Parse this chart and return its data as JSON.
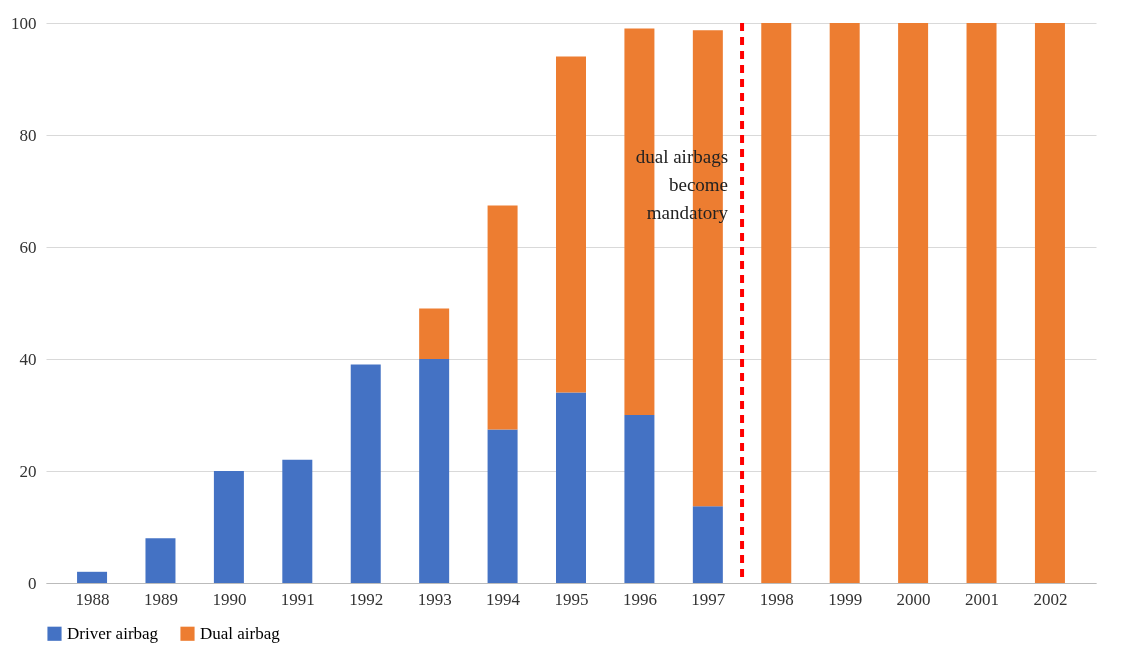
{
  "chart_data": {
    "type": "bar",
    "stacked": true,
    "x": [
      1988,
      1989,
      1990,
      1991,
      1992,
      1993,
      1994,
      1995,
      1996,
      1997,
      1998,
      1999,
      2000,
      2001,
      2002
    ],
    "xlim": [
      1987.4,
      2002.6
    ],
    "xticks": [
      1988,
      1989,
      1990,
      1991,
      1992,
      1993,
      1994,
      1995,
      1996,
      1997,
      1998,
      1999,
      2000,
      2001,
      2002
    ],
    "ylim": [
      0,
      100
    ],
    "yticks": [
      0,
      20,
      40,
      60,
      80,
      100
    ],
    "series": [
      {
        "name": "Driver airbag",
        "color": "#4472c4",
        "values": [
          2,
          8,
          20,
          22,
          39,
          40,
          27.4,
          34,
          30,
          13.7,
          null,
          null,
          null,
          null,
          null
        ]
      },
      {
        "name": "Dual airbag",
        "color": "#ed7d31",
        "values": [
          null,
          null,
          null,
          null,
          null,
          9,
          40,
          60,
          69,
          85,
          100,
          100,
          100,
          100,
          100
        ]
      }
    ],
    "ref_lines": [
      {
        "axis": "x",
        "value": 1997.5,
        "label": "dual airbags\nbecome\nmandatory",
        "color": "#ff0000",
        "line_style": "dashed"
      }
    ],
    "grid": "y",
    "legend": "bottom"
  }
}
